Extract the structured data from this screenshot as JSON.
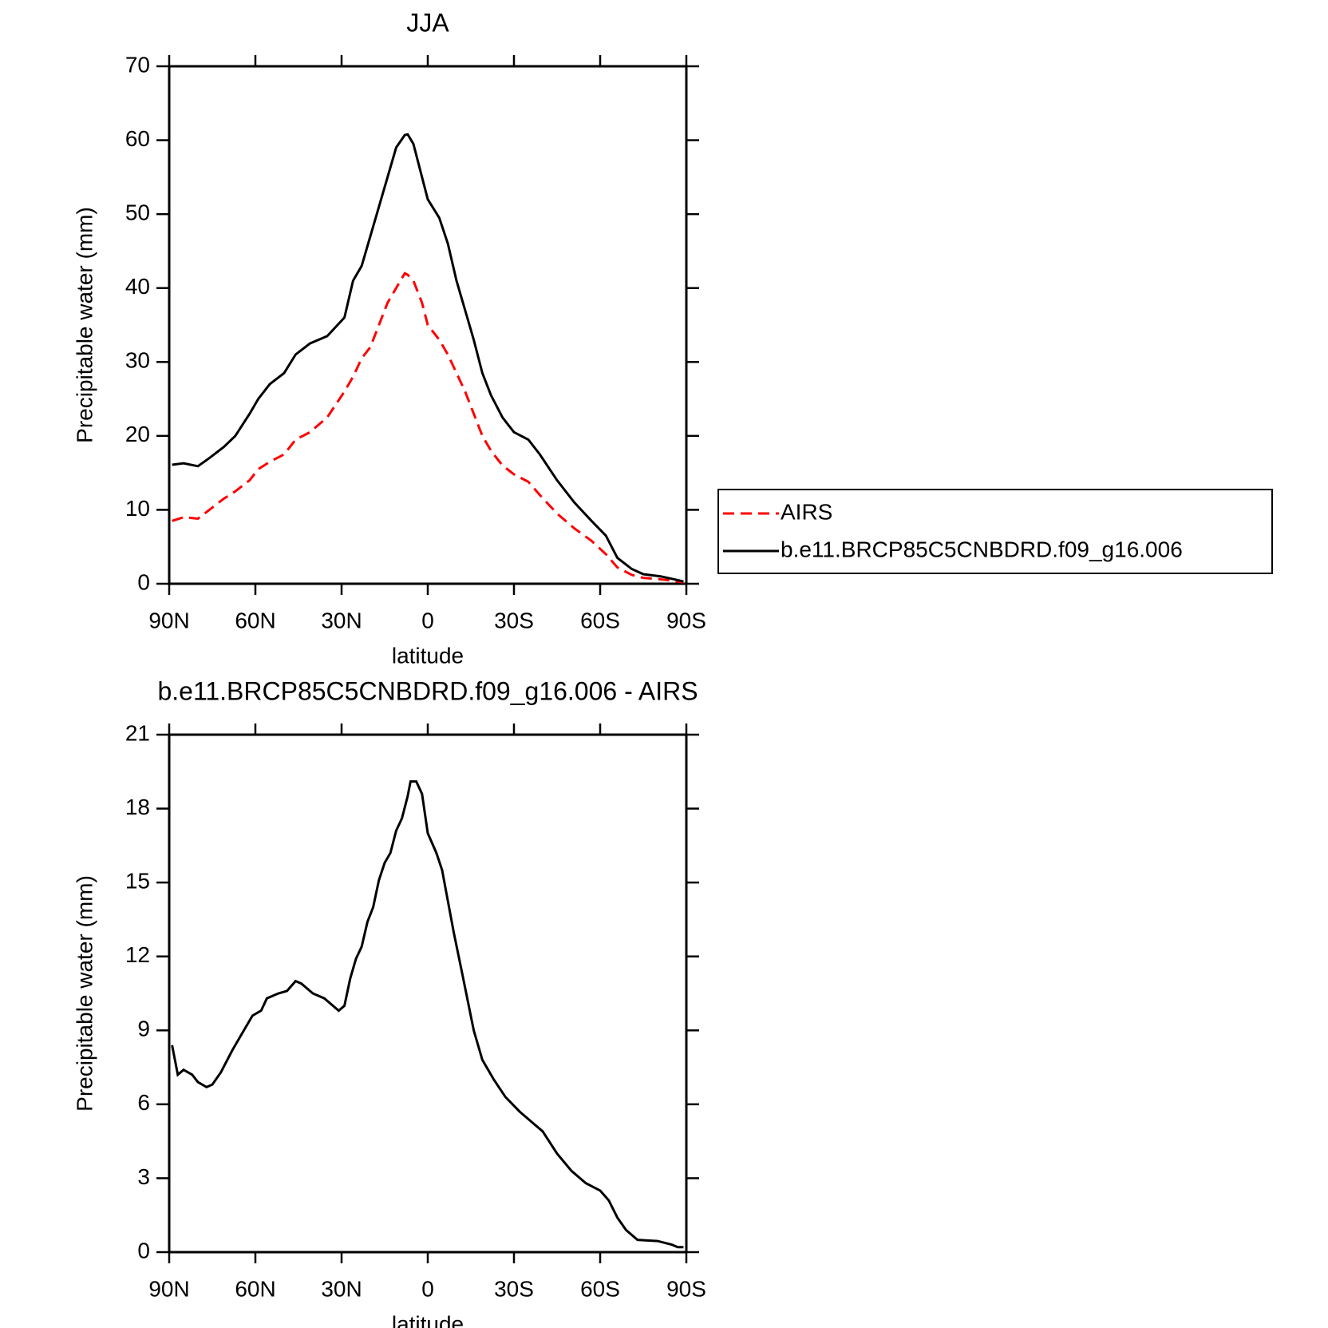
{
  "chart_data": [
    {
      "type": "line",
      "title": "JJA",
      "xlabel": "latitude",
      "ylabel": "Precipitable water (mm)",
      "x": [
        89,
        85,
        80,
        76,
        71,
        67,
        62,
        59,
        55,
        50,
        46,
        41,
        35,
        29,
        26,
        23,
        20,
        17,
        14,
        11,
        8,
        7,
        5,
        2,
        0,
        -4,
        -7,
        -10,
        -13,
        -16,
        -19,
        -22,
        -26,
        -30,
        -35,
        -39,
        -45,
        -51,
        -57,
        -62,
        -66,
        -71,
        -75,
        -81,
        -87,
        -89
      ],
      "series": [
        {
          "name": "AIRS",
          "color": "#ff0000",
          "dash": true,
          "values": [
            8.5,
            9,
            8.8,
            10,
            11.5,
            12.5,
            14,
            15.5,
            16.5,
            17.5,
            19.5,
            20.5,
            22.5,
            26,
            28,
            30.5,
            32,
            35,
            38,
            40,
            42,
            41.8,
            41,
            38,
            35,
            33,
            31,
            28.5,
            26,
            23,
            20,
            18,
            16,
            14.8,
            13.8,
            12,
            9.5,
            7.5,
            5.8,
            4,
            2.2,
            1.2,
            0.8,
            0.6,
            0.3,
            0.2
          ]
        },
        {
          "name": "b.e11.BRCP85C5CNBDRD.f09_g16.006",
          "color": "#000000",
          "dash": false,
          "values": [
            16.1,
            16.3,
            15.9,
            17,
            18.5,
            20,
            23,
            25,
            27,
            28.5,
            31,
            32.5,
            33.5,
            36,
            41,
            43,
            47,
            51,
            55,
            59,
            60.7,
            60.8,
            59.5,
            55,
            52,
            49.5,
            46,
            41,
            37,
            33,
            28.5,
            25.5,
            22.5,
            20.5,
            19.5,
            17.5,
            14,
            11,
            8.5,
            6.5,
            3.5,
            2,
            1.3,
            1,
            0.5,
            0.3
          ]
        }
      ],
      "xlim": [
        90,
        -90
      ],
      "xticks": [
        {
          "value": 90,
          "label": "90N"
        },
        {
          "value": 60,
          "label": "60N"
        },
        {
          "value": 30,
          "label": "30N"
        },
        0,
        {
          "value": -30,
          "label": "30S"
        },
        {
          "value": -60,
          "label": "60S"
        },
        {
          "value": -90,
          "label": "90S"
        }
      ],
      "ylim": [
        0,
        70
      ],
      "yticks": [
        0,
        10,
        20,
        30,
        40,
        50,
        60,
        70
      ],
      "legend": "right",
      "grid": false
    },
    {
      "type": "line",
      "title": "b.e11.BRCP85C5CNBDRD.f09_g16.006 - AIRS",
      "xlabel": "latitude",
      "ylabel": "Precipitable water (mm)",
      "x": [
        89,
        87,
        85,
        82,
        80,
        77,
        75,
        72,
        68,
        64,
        61,
        58,
        56,
        52,
        49,
        46,
        44,
        40,
        36,
        31,
        29,
        27,
        25,
        23,
        21,
        19,
        17,
        15,
        13,
        11,
        9,
        7,
        6,
        4,
        2,
        0,
        -3,
        -5,
        -9,
        -12,
        -16,
        -19,
        -23,
        -27,
        -32,
        -36,
        -40,
        -45,
        -50,
        -55,
        -60,
        -63,
        -66,
        -69,
        -73,
        -80,
        -85,
        -87,
        -89
      ],
      "values": [
        8.4,
        7.2,
        7.4,
        7.2,
        6.9,
        6.7,
        6.8,
        7.3,
        8.2,
        9.0,
        9.6,
        9.8,
        10.3,
        10.5,
        10.6,
        11.0,
        10.9,
        10.5,
        10.3,
        9.8,
        10.0,
        11.1,
        11.9,
        12.4,
        13.4,
        14.0,
        15.1,
        15.8,
        16.2,
        17.1,
        17.6,
        18.5,
        19.1,
        19.1,
        18.6,
        17.0,
        16.2,
        15.5,
        13.0,
        11.3,
        9.0,
        7.8,
        7.0,
        6.3,
        5.7,
        5.3,
        4.9,
        4.0,
        3.3,
        2.8,
        2.5,
        2.1,
        1.4,
        0.9,
        0.5,
        0.45,
        0.3,
        0.2,
        0.2
      ],
      "color": "#000000",
      "xlim": [
        90,
        -90
      ],
      "xticks": [
        {
          "value": 90,
          "label": "90N"
        },
        {
          "value": 60,
          "label": "60N"
        },
        {
          "value": 30,
          "label": "30N"
        },
        0,
        {
          "value": -30,
          "label": "30S"
        },
        {
          "value": -60,
          "label": "60S"
        },
        {
          "value": -90,
          "label": "90S"
        }
      ],
      "ylim": [
        0,
        21
      ],
      "yticks": [
        0,
        3,
        6,
        9,
        12,
        15,
        18,
        21
      ],
      "grid": false
    }
  ]
}
